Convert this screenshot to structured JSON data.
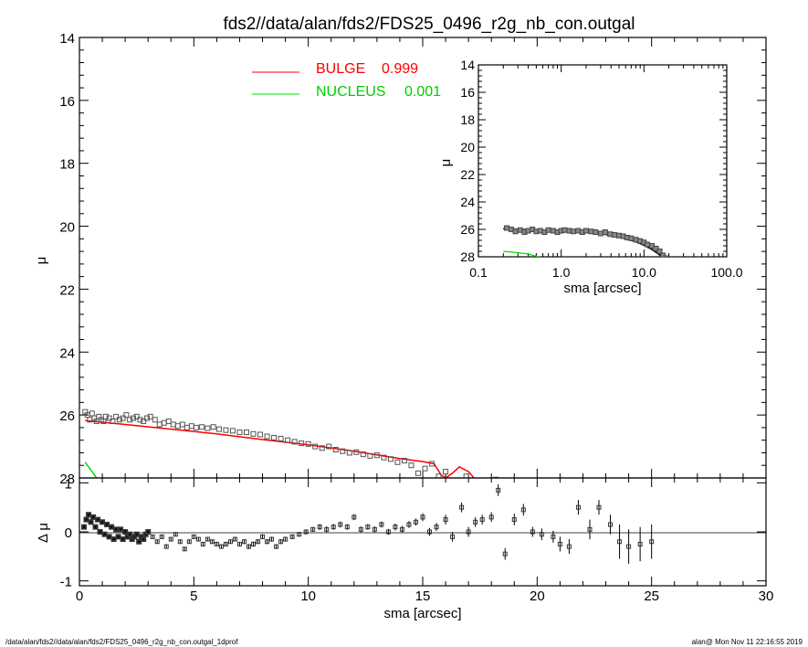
{
  "title": "fds2//data/alan/fds2/FDS25_0496_r2g_nb_con.outgal",
  "footer": {
    "left": "/data/alan/fds2//data/alan/fds2/FDS25_0496_r2g_nb_con.outgal_1dprof",
    "right": "alan@  Mon Nov 11 22:16:55 2019"
  },
  "colors": {
    "bulge": "#ff0000",
    "nucleus": "#00dd00",
    "data": "#555555",
    "axis": "#000000"
  },
  "chart_data": [
    {
      "type": "line",
      "panel": "main profile",
      "xlabel": "",
      "ylabel": "μ",
      "xlim": [
        0,
        30
      ],
      "ylim": [
        28,
        14
      ],
      "yticks": [
        "14",
        "16",
        "18",
        "20",
        "22",
        "24",
        "26",
        "28"
      ],
      "legend": {
        "placement": "top-left",
        "entries": [
          {
            "label": "BULGE",
            "value": "0.999",
            "color": "#ff0000"
          },
          {
            "label": "NUCLEUS",
            "value": "0.001",
            "color": "#00dd00"
          }
        ]
      },
      "series": [
        {
          "name": "BULGE",
          "style": "line",
          "color": "#ff0000",
          "x": [
            0.25,
            2,
            4,
            6,
            8,
            10,
            12,
            14,
            15,
            15.5,
            15.8,
            16,
            16.3,
            16.6,
            17,
            17.3,
            17.6,
            18
          ],
          "y": [
            26.18,
            26.3,
            26.45,
            26.6,
            26.78,
            26.95,
            27.15,
            27.38,
            27.48,
            27.55,
            27.9,
            28.0,
            27.85,
            27.65,
            27.8,
            28.05,
            28.3,
            28.6
          ]
        },
        {
          "name": "NUCLEUS",
          "style": "line",
          "color": "#00dd00",
          "x": [
            0.25,
            0.4,
            0.6,
            0.8,
            1.0
          ],
          "y": [
            27.5,
            27.65,
            27.85,
            28.05,
            28.3
          ]
        },
        {
          "name": "data",
          "style": "squares",
          "color": "#555555",
          "x": [
            0.25,
            0.35,
            0.45,
            0.55,
            0.65,
            0.75,
            0.85,
            0.95,
            1.05,
            1.15,
            1.3,
            1.45,
            1.6,
            1.75,
            1.9,
            2.05,
            2.2,
            2.35,
            2.5,
            2.65,
            2.8,
            2.95,
            3.1,
            3.3,
            3.5,
            3.7,
            3.9,
            4.1,
            4.3,
            4.5,
            4.7,
            4.9,
            5.1,
            5.35,
            5.6,
            5.85,
            6.1,
            6.4,
            6.7,
            7.0,
            7.3,
            7.6,
            7.9,
            8.2,
            8.5,
            8.8,
            9.1,
            9.4,
            9.7,
            10.0,
            10.3,
            10.6,
            10.9,
            11.2,
            11.5,
            11.8,
            12.1,
            12.4,
            12.7,
            13.0,
            13.3,
            13.6,
            13.9,
            14.2,
            14.5,
            14.8,
            15.1,
            15.4,
            15.7,
            16.0,
            16.3,
            16.6,
            16.9,
            17.2,
            17.5,
            17.8,
            18.2,
            18.6,
            19.0,
            19.5,
            20.0,
            20.5,
            21.0
          ],
          "y": [
            25.9,
            26.0,
            26.15,
            25.95,
            26.1,
            26.2,
            26.05,
            26.15,
            26.2,
            26.05,
            26.1,
            26.2,
            26.05,
            26.15,
            26.1,
            26.0,
            26.15,
            26.1,
            26.05,
            26.15,
            26.2,
            26.1,
            26.05,
            26.15,
            26.3,
            26.25,
            26.2,
            26.3,
            26.35,
            26.3,
            26.4,
            26.35,
            26.4,
            26.38,
            26.42,
            26.38,
            26.45,
            26.48,
            26.5,
            26.55,
            26.55,
            26.6,
            26.62,
            26.68,
            26.72,
            26.75,
            26.8,
            26.85,
            26.9,
            26.92,
            27.0,
            27.05,
            27.0,
            27.1,
            27.15,
            27.2,
            27.18,
            27.25,
            27.3,
            27.28,
            27.35,
            27.4,
            27.5,
            27.45,
            27.6,
            27.85,
            27.7,
            27.55,
            27.95,
            27.8,
            28.2,
            28.1,
            27.95,
            28.3,
            28.4,
            28.2,
            28.05,
            28.15,
            28.3,
            28.2,
            28.4,
            28.1,
            28.2
          ]
        }
      ]
    },
    {
      "type": "scatter",
      "panel": "residuals",
      "xlabel": "sma [arcsec]",
      "ylabel": "Δ μ",
      "xlim": [
        0,
        30
      ],
      "ylim": [
        -1.1,
        1.1
      ],
      "xticks": [
        "0",
        "5",
        "10",
        "15",
        "20",
        "25",
        "30"
      ],
      "yticks": [
        "-1",
        "0",
        "1"
      ],
      "series": [
        {
          "name": "residual",
          "style": "squares_with_errorbars",
          "color": "#555555",
          "x": [
            0.2,
            0.3,
            0.4,
            0.5,
            0.6,
            0.7,
            0.8,
            0.9,
            1.0,
            1.1,
            1.2,
            1.3,
            1.4,
            1.5,
            1.6,
            1.7,
            1.8,
            1.9,
            2.0,
            2.1,
            2.2,
            2.3,
            2.4,
            2.5,
            2.6,
            2.7,
            2.8,
            2.9,
            3.0,
            3.2,
            3.4,
            3.6,
            3.8,
            4.0,
            4.2,
            4.4,
            4.6,
            4.8,
            5.0,
            5.2,
            5.4,
            5.6,
            5.8,
            6.0,
            6.2,
            6.4,
            6.6,
            6.8,
            7.0,
            7.2,
            7.4,
            7.6,
            7.8,
            8.0,
            8.2,
            8.4,
            8.6,
            8.8,
            9.0,
            9.3,
            9.6,
            9.9,
            10.2,
            10.5,
            10.8,
            11.1,
            11.4,
            11.7,
            12.0,
            12.3,
            12.6,
            12.9,
            13.2,
            13.5,
            13.8,
            14.1,
            14.4,
            14.7,
            15.0,
            15.3,
            15.6,
            16.0,
            16.3,
            16.7,
            17.0,
            17.3,
            17.6,
            18.0,
            18.3,
            18.6,
            19.0,
            19.4,
            19.8,
            20.2,
            20.7,
            21.0,
            21.4,
            21.8,
            22.3,
            22.7,
            23.2,
            23.6,
            24.0,
            24.5,
            25.0
          ],
          "y": [
            0.1,
            0.25,
            0.35,
            0.2,
            0.3,
            0.1,
            0.25,
            0.0,
            0.2,
            -0.05,
            0.15,
            -0.1,
            0.1,
            -0.15,
            0.05,
            -0.1,
            0.05,
            -0.15,
            0.0,
            -0.1,
            -0.05,
            -0.15,
            -0.1,
            -0.05,
            -0.2,
            -0.1,
            -0.15,
            -0.05,
            0.0,
            -0.1,
            -0.2,
            -0.1,
            -0.3,
            -0.15,
            -0.05,
            -0.2,
            -0.35,
            -0.2,
            -0.1,
            -0.15,
            -0.25,
            -0.15,
            -0.2,
            -0.25,
            -0.3,
            -0.25,
            -0.2,
            -0.15,
            -0.25,
            -0.2,
            -0.3,
            -0.25,
            -0.2,
            -0.1,
            -0.2,
            -0.15,
            -0.3,
            -0.2,
            -0.15,
            -0.1,
            -0.05,
            0.0,
            0.05,
            0.1,
            0.05,
            0.1,
            0.15,
            0.1,
            0.3,
            0.05,
            0.1,
            0.05,
            0.15,
            0.0,
            0.1,
            0.05,
            0.15,
            0.2,
            0.3,
            0.0,
            0.1,
            0.25,
            -0.1,
            0.5,
            0.0,
            0.2,
            0.25,
            0.3,
            0.85,
            -0.45,
            0.25,
            0.45,
            0.0,
            -0.05,
            -0.1,
            -0.25,
            -0.3,
            0.5,
            0.05,
            0.5,
            0.15,
            -0.2,
            -0.3,
            -0.25,
            -0.2
          ],
          "err": [
            0.04,
            0.04,
            0.04,
            0.04,
            0.04,
            0.04,
            0.04,
            0.04,
            0.04,
            0.04,
            0.04,
            0.04,
            0.04,
            0.04,
            0.04,
            0.04,
            0.04,
            0.04,
            0.04,
            0.04,
            0.04,
            0.04,
            0.04,
            0.04,
            0.04,
            0.04,
            0.04,
            0.04,
            0.04,
            0.04,
            0.04,
            0.04,
            0.04,
            0.04,
            0.04,
            0.04,
            0.04,
            0.04,
            0.04,
            0.04,
            0.04,
            0.04,
            0.04,
            0.04,
            0.04,
            0.04,
            0.04,
            0.04,
            0.04,
            0.05,
            0.05,
            0.05,
            0.05,
            0.05,
            0.05,
            0.05,
            0.05,
            0.05,
            0.05,
            0.05,
            0.05,
            0.05,
            0.05,
            0.06,
            0.06,
            0.06,
            0.06,
            0.06,
            0.06,
            0.06,
            0.06,
            0.06,
            0.06,
            0.06,
            0.07,
            0.07,
            0.07,
            0.07,
            0.08,
            0.08,
            0.08,
            0.1,
            0.1,
            0.1,
            0.1,
            0.1,
            0.1,
            0.1,
            0.12,
            0.12,
            0.12,
            0.12,
            0.1,
            0.12,
            0.12,
            0.15,
            0.15,
            0.15,
            0.2,
            0.15,
            0.2,
            0.35,
            0.35,
            0.35,
            0.35
          ]
        }
      ]
    },
    {
      "type": "line",
      "panel": "inset log profile",
      "xlabel": "sma [arcsec]",
      "ylabel": "μ",
      "xscale": "log",
      "xlim": [
        0.1,
        100
      ],
      "ylim": [
        28,
        14
      ],
      "xticks": [
        "0.1",
        "1.0",
        "10.0",
        "100.0"
      ],
      "yticks": [
        "14",
        "16",
        "18",
        "20",
        "22",
        "24",
        "26",
        "28"
      ],
      "series": [
        {
          "name": "BULGE",
          "style": "line",
          "color": "#ff0000",
          "x": [
            0.2,
            0.3,
            0.5,
            1,
            2,
            3,
            5,
            8,
            10,
            12,
            15,
            18,
            20
          ],
          "y": [
            25.95,
            26.0,
            26.05,
            26.1,
            26.2,
            26.3,
            26.55,
            26.9,
            27.15,
            27.4,
            27.8,
            28.2,
            28.5
          ]
        },
        {
          "name": "NUCLEUS",
          "style": "line",
          "color": "#00dd00",
          "x": [
            0.2,
            0.3,
            0.4,
            0.5,
            0.6,
            0.7
          ],
          "y": [
            27.6,
            27.7,
            27.8,
            27.95,
            28.1,
            28.3
          ]
        },
        {
          "name": "model",
          "style": "line",
          "color": "#000000",
          "x": [
            0.2,
            0.3,
            0.5,
            1,
            2,
            3,
            5,
            8,
            10,
            12,
            15,
            18,
            20
          ],
          "y": [
            25.95,
            26.0,
            26.05,
            26.1,
            26.2,
            26.3,
            26.55,
            26.9,
            27.15,
            27.4,
            27.8,
            28.2,
            28.5
          ]
        },
        {
          "name": "data",
          "style": "squares",
          "color": "#555555",
          "x": [
            0.22,
            0.25,
            0.28,
            0.32,
            0.36,
            0.4,
            0.45,
            0.5,
            0.56,
            0.63,
            0.7,
            0.8,
            0.9,
            1.0,
            1.1,
            1.25,
            1.4,
            1.6,
            1.8,
            2.0,
            2.3,
            2.6,
            3.0,
            3.4,
            3.9,
            4.4,
            5.0,
            5.6,
            6.3,
            7.0,
            8.0,
            9.0,
            10.0,
            11.0,
            12.5,
            14.0,
            15.5,
            17.0,
            18.5,
            20.0
          ],
          "y": [
            25.9,
            26.0,
            26.15,
            26.05,
            26.2,
            26.1,
            26.0,
            26.15,
            26.1,
            26.2,
            26.05,
            26.1,
            26.2,
            26.1,
            26.05,
            26.1,
            26.15,
            26.1,
            26.2,
            26.1,
            26.15,
            26.2,
            26.3,
            26.2,
            26.35,
            26.4,
            26.45,
            26.5,
            26.6,
            26.65,
            26.75,
            26.85,
            26.95,
            27.1,
            27.2,
            27.4,
            27.6,
            27.9,
            28.1,
            28.3
          ]
        }
      ]
    }
  ]
}
